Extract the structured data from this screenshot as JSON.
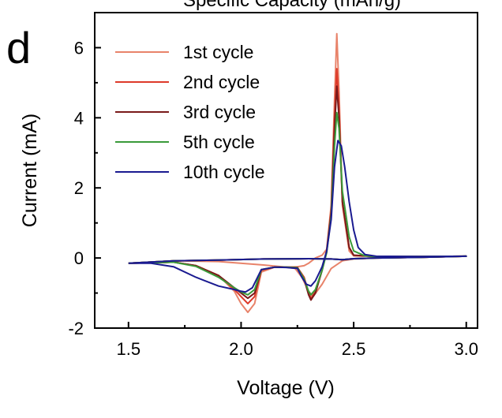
{
  "panel_label": "d",
  "top_label": "Specific Capacity (mAh/g)",
  "chart_data": {
    "type": "line",
    "title": "",
    "xlabel": "Voltage (V)",
    "ylabel": "Current (mA)",
    "xlim": [
      1.35,
      3.05
    ],
    "ylim": [
      -2,
      7
    ],
    "xticks": [
      1.5,
      2.0,
      2.5,
      3.0
    ],
    "xtick_labels": [
      "1.5",
      "2.0",
      "2.5",
      "3.0"
    ],
    "yticks": [
      -2,
      0,
      2,
      4,
      6
    ],
    "ytick_labels": [
      "-2",
      "0",
      "2",
      "4",
      "6"
    ],
    "grid": false,
    "legend_position": "top-left",
    "series": [
      {
        "name": "1st cycle",
        "color": "#e8836a",
        "points": [
          [
            1.5,
            -0.15
          ],
          [
            1.6,
            -0.14
          ],
          [
            1.7,
            -0.12
          ],
          [
            1.8,
            -0.22
          ],
          [
            1.9,
            -0.5
          ],
          [
            1.97,
            -0.95
          ],
          [
            2.0,
            -1.3
          ],
          [
            2.03,
            -1.55
          ],
          [
            2.06,
            -1.3
          ],
          [
            2.09,
            -0.4
          ],
          [
            2.15,
            -0.26
          ],
          [
            2.2,
            -0.26
          ],
          [
            2.25,
            -0.25
          ],
          [
            2.28,
            -0.22
          ],
          [
            2.3,
            -0.15
          ],
          [
            2.33,
            0.0
          ],
          [
            2.36,
            0.08
          ],
          [
            2.38,
            0.25
          ],
          [
            2.4,
            1.5
          ],
          [
            2.415,
            4.5
          ],
          [
            2.425,
            6.4
          ],
          [
            2.435,
            4.8
          ],
          [
            2.45,
            1.5
          ],
          [
            2.48,
            0.2
          ],
          [
            2.5,
            0.06
          ],
          [
            2.6,
            0.04
          ],
          [
            2.8,
            0.04
          ],
          [
            3.0,
            0.05
          ],
          [
            2.8,
            0.02
          ],
          [
            2.6,
            0.0
          ],
          [
            2.5,
            -0.03
          ],
          [
            2.45,
            -0.08
          ],
          [
            2.4,
            -0.3
          ],
          [
            2.36,
            -0.75
          ],
          [
            2.32,
            -1.1
          ],
          [
            2.3,
            -0.95
          ],
          [
            2.27,
            -0.55
          ],
          [
            2.24,
            -0.3
          ],
          [
            2.2,
            -0.26
          ],
          [
            2.1,
            -0.2
          ],
          [
            1.9,
            -0.1
          ],
          [
            1.7,
            -0.08
          ],
          [
            1.5,
            -0.15
          ]
        ]
      },
      {
        "name": "2nd cycle",
        "color": "#dd3a2a",
        "points": [
          [
            1.5,
            -0.15
          ],
          [
            1.6,
            -0.14
          ],
          [
            1.7,
            -0.12
          ],
          [
            1.8,
            -0.22
          ],
          [
            1.9,
            -0.5
          ],
          [
            1.97,
            -0.9
          ],
          [
            2.0,
            -1.1
          ],
          [
            2.03,
            -1.3
          ],
          [
            2.06,
            -1.1
          ],
          [
            2.09,
            -0.35
          ],
          [
            2.15,
            -0.26
          ],
          [
            2.2,
            -0.26
          ],
          [
            2.25,
            -0.27
          ],
          [
            2.28,
            -0.55
          ],
          [
            2.3,
            -0.98
          ],
          [
            2.31,
            -1.15
          ],
          [
            2.33,
            -0.95
          ],
          [
            2.36,
            -0.35
          ],
          [
            2.38,
            0.2
          ],
          [
            2.4,
            1.4
          ],
          [
            2.415,
            4.0
          ],
          [
            2.425,
            5.4
          ],
          [
            2.435,
            4.3
          ],
          [
            2.45,
            1.6
          ],
          [
            2.48,
            0.3
          ],
          [
            2.5,
            0.08
          ],
          [
            2.6,
            0.04
          ],
          [
            2.8,
            0.04
          ],
          [
            3.0,
            0.05
          ],
          [
            2.8,
            0.02
          ],
          [
            2.6,
            0.0
          ],
          [
            2.5,
            -0.02
          ],
          [
            2.45,
            -0.05
          ],
          [
            2.4,
            -0.03
          ],
          [
            2.3,
            -0.02
          ],
          [
            2.1,
            -0.03
          ],
          [
            1.9,
            -0.06
          ],
          [
            1.7,
            -0.08
          ],
          [
            1.5,
            -0.15
          ]
        ]
      },
      {
        "name": "3rd cycle",
        "color": "#7a1a1a",
        "points": [
          [
            1.5,
            -0.15
          ],
          [
            1.6,
            -0.14
          ],
          [
            1.7,
            -0.12
          ],
          [
            1.8,
            -0.22
          ],
          [
            1.9,
            -0.5
          ],
          [
            1.97,
            -0.85
          ],
          [
            2.0,
            -1.0
          ],
          [
            2.03,
            -1.15
          ],
          [
            2.06,
            -1.0
          ],
          [
            2.09,
            -0.33
          ],
          [
            2.15,
            -0.26
          ],
          [
            2.2,
            -0.26
          ],
          [
            2.25,
            -0.27
          ],
          [
            2.28,
            -0.6
          ],
          [
            2.3,
            -1.05
          ],
          [
            2.31,
            -1.2
          ],
          [
            2.33,
            -1.0
          ],
          [
            2.36,
            -0.35
          ],
          [
            2.38,
            0.2
          ],
          [
            2.4,
            1.3
          ],
          [
            2.415,
            3.7
          ],
          [
            2.425,
            4.9
          ],
          [
            2.435,
            4.0
          ],
          [
            2.45,
            1.6
          ],
          [
            2.48,
            0.3
          ],
          [
            2.5,
            0.08
          ],
          [
            2.6,
            0.04
          ],
          [
            2.8,
            0.04
          ],
          [
            3.0,
            0.05
          ],
          [
            2.8,
            0.02
          ],
          [
            2.6,
            0.0
          ],
          [
            2.5,
            -0.02
          ],
          [
            2.45,
            -0.05
          ],
          [
            2.4,
            -0.03
          ],
          [
            2.3,
            -0.02
          ],
          [
            2.1,
            -0.03
          ],
          [
            1.9,
            -0.06
          ],
          [
            1.7,
            -0.08
          ],
          [
            1.5,
            -0.15
          ]
        ]
      },
      {
        "name": "5th cycle",
        "color": "#3a9a3a",
        "points": [
          [
            1.5,
            -0.15
          ],
          [
            1.6,
            -0.14
          ],
          [
            1.7,
            -0.12
          ],
          [
            1.8,
            -0.24
          ],
          [
            1.9,
            -0.55
          ],
          [
            1.97,
            -0.85
          ],
          [
            2.0,
            -0.97
          ],
          [
            2.03,
            -1.05
          ],
          [
            2.06,
            -0.9
          ],
          [
            2.09,
            -0.33
          ],
          [
            2.15,
            -0.26
          ],
          [
            2.2,
            -0.26
          ],
          [
            2.25,
            -0.28
          ],
          [
            2.28,
            -0.6
          ],
          [
            2.3,
            -0.95
          ],
          [
            2.31,
            -1.05
          ],
          [
            2.33,
            -0.9
          ],
          [
            2.36,
            -0.35
          ],
          [
            2.38,
            0.15
          ],
          [
            2.4,
            1.2
          ],
          [
            2.415,
            3.2
          ],
          [
            2.425,
            4.15
          ],
          [
            2.435,
            3.7
          ],
          [
            2.45,
            1.9
          ],
          [
            2.48,
            0.6
          ],
          [
            2.5,
            0.2
          ],
          [
            2.55,
            0.06
          ],
          [
            2.6,
            0.04
          ],
          [
            2.8,
            0.04
          ],
          [
            3.0,
            0.05
          ],
          [
            2.8,
            0.02
          ],
          [
            2.6,
            0.0
          ],
          [
            2.5,
            -0.02
          ],
          [
            2.45,
            -0.05
          ],
          [
            2.4,
            -0.03
          ],
          [
            2.3,
            -0.02
          ],
          [
            2.1,
            -0.03
          ],
          [
            1.9,
            -0.06
          ],
          [
            1.7,
            -0.08
          ],
          [
            1.5,
            -0.15
          ]
        ]
      },
      {
        "name": "10th cycle",
        "color": "#1a1a90",
        "points": [
          [
            1.5,
            -0.15
          ],
          [
            1.6,
            -0.15
          ],
          [
            1.7,
            -0.25
          ],
          [
            1.8,
            -0.55
          ],
          [
            1.9,
            -0.8
          ],
          [
            1.97,
            -0.9
          ],
          [
            2.0,
            -0.95
          ],
          [
            2.02,
            -0.97
          ],
          [
            2.05,
            -0.85
          ],
          [
            2.09,
            -0.33
          ],
          [
            2.15,
            -0.26
          ],
          [
            2.2,
            -0.27
          ],
          [
            2.25,
            -0.3
          ],
          [
            2.27,
            -0.55
          ],
          [
            2.29,
            -0.75
          ],
          [
            2.31,
            -0.8
          ],
          [
            2.33,
            -0.65
          ],
          [
            2.36,
            -0.25
          ],
          [
            2.38,
            0.2
          ],
          [
            2.4,
            1.1
          ],
          [
            2.415,
            2.6
          ],
          [
            2.43,
            3.35
          ],
          [
            2.445,
            3.2
          ],
          [
            2.46,
            2.6
          ],
          [
            2.48,
            1.6
          ],
          [
            2.5,
            0.8
          ],
          [
            2.52,
            0.3
          ],
          [
            2.55,
            0.1
          ],
          [
            2.6,
            0.05
          ],
          [
            2.8,
            0.04
          ],
          [
            3.0,
            0.05
          ],
          [
            2.8,
            0.02
          ],
          [
            2.6,
            0.0
          ],
          [
            2.5,
            -0.02
          ],
          [
            2.45,
            -0.05
          ],
          [
            2.4,
            -0.03
          ],
          [
            2.3,
            -0.02
          ],
          [
            2.1,
            -0.03
          ],
          [
            1.9,
            -0.06
          ],
          [
            1.7,
            -0.08
          ],
          [
            1.5,
            -0.15
          ]
        ]
      }
    ]
  }
}
